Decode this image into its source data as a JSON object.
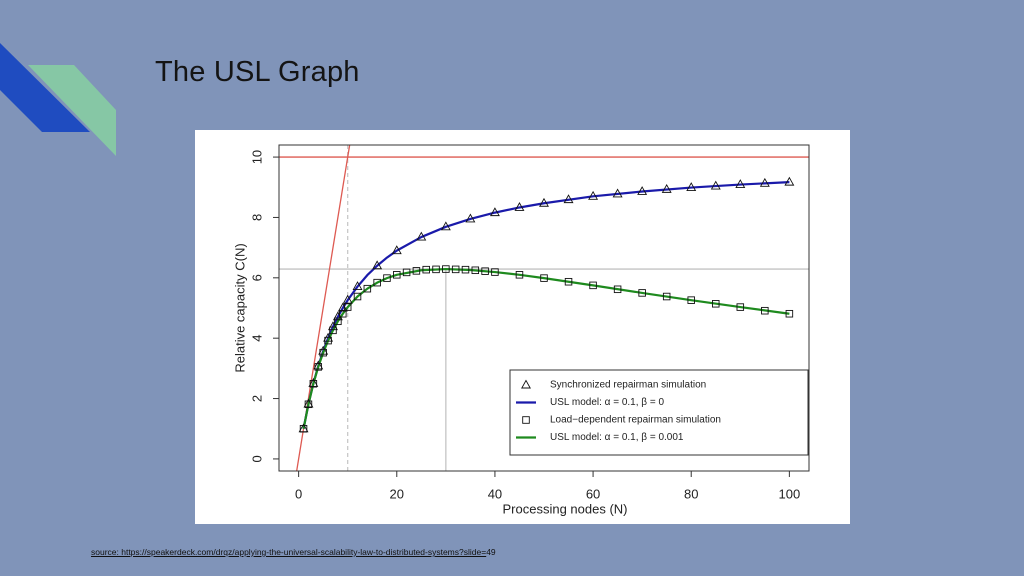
{
  "slide": {
    "title": "The USL Graph",
    "source_link": "source: https://speakerdeck.com/drqz/applying-the-universal-scalability-law-to-distributed-systems?slide=",
    "source_page": "49"
  },
  "chart_data": {
    "type": "line",
    "x_label": "Processing nodes (N)",
    "y_label": "Relative capacity C(N)",
    "xlim": [
      -4,
      104
    ],
    "ylim": [
      -0.4,
      10.4
    ],
    "xticks": [
      0,
      20,
      40,
      60,
      80,
      100
    ],
    "yticks": [
      0,
      2,
      4,
      6,
      8,
      10
    ],
    "legend": "lower right",
    "series": [
      {
        "name": "Synchronized repairman simulation",
        "color": "#111111",
        "marker": "triangle",
        "x": [
          1,
          2,
          3,
          4,
          5,
          6,
          7,
          8,
          9,
          10,
          12,
          16,
          20,
          25,
          30,
          35,
          40,
          45,
          50,
          55,
          60,
          65,
          70,
          75,
          80,
          85,
          90,
          95,
          100
        ],
        "values": [
          1,
          1.82,
          2.5,
          3.08,
          3.57,
          4,
          4.38,
          4.71,
          5,
          5.26,
          5.71,
          6.4,
          6.9,
          7.35,
          7.69,
          7.95,
          8.16,
          8.33,
          8.47,
          8.59,
          8.7,
          8.78,
          8.86,
          8.93,
          8.99,
          9.04,
          9.09,
          9.13,
          9.17
        ]
      },
      {
        "name": "USL model: α = 0.1, β = 0",
        "color": "#1a1aaa",
        "marker": "none",
        "x": [
          1,
          2,
          3,
          4,
          5,
          6,
          7,
          8,
          9,
          10,
          12,
          14,
          16,
          18,
          20,
          25,
          30,
          35,
          40,
          45,
          50,
          60,
          70,
          80,
          90,
          100
        ],
        "values": [
          1,
          1.82,
          2.5,
          3.08,
          3.57,
          4,
          4.38,
          4.71,
          5,
          5.26,
          5.71,
          6.09,
          6.4,
          6.67,
          6.9,
          7.35,
          7.69,
          7.95,
          8.16,
          8.33,
          8.47,
          8.7,
          8.86,
          8.99,
          9.09,
          9.17
        ]
      },
      {
        "name": "Load−dependent repairman simulation",
        "color": "#111111",
        "marker": "square",
        "x": [
          1,
          2,
          3,
          4,
          5,
          6,
          7,
          8,
          9,
          10,
          12,
          14,
          16,
          18,
          20,
          22,
          24,
          26,
          28,
          30,
          32,
          34,
          36,
          38,
          40,
          45,
          50,
          55,
          60,
          65,
          70,
          75,
          80,
          85,
          90,
          95,
          100
        ],
        "values": [
          1,
          1.81,
          2.49,
          3.05,
          3.52,
          3.92,
          4.26,
          4.56,
          4.81,
          5.03,
          5.38,
          5.64,
          5.84,
          5.99,
          6.1,
          6.18,
          6.23,
          6.27,
          6.28,
          6.29,
          6.28,
          6.27,
          6.25,
          6.22,
          6.19,
          6.1,
          5.99,
          5.87,
          5.75,
          5.62,
          5.5,
          5.38,
          5.26,
          5.14,
          5.03,
          4.91,
          4.81
        ]
      },
      {
        "name": "USL model: α = 0.1, β = 0.001",
        "color": "#1e8a1e",
        "marker": "none",
        "x": [
          1,
          2,
          3,
          4,
          5,
          6,
          7,
          8,
          9,
          10,
          12,
          14,
          16,
          18,
          20,
          25,
          30,
          35,
          40,
          45,
          50,
          60,
          70,
          80,
          90,
          100
        ],
        "values": [
          1,
          1.81,
          2.49,
          3.05,
          3.52,
          3.92,
          4.26,
          4.56,
          4.81,
          5.03,
          5.38,
          5.64,
          5.84,
          5.99,
          6.1,
          6.25,
          6.29,
          6.26,
          6.19,
          6.1,
          5.99,
          5.75,
          5.5,
          5.26,
          5.03,
          4.81
        ]
      }
    ],
    "ceiling": {
      "value": 10,
      "color": "#de5a52"
    },
    "ideal": {
      "x": [
        -1,
        11
      ],
      "values": [
        -1,
        11
      ],
      "color": "#de5a52"
    },
    "knee_x": 10,
    "peak": {
      "x": 30,
      "value": 6.29,
      "color": "#c4c4c4"
    }
  }
}
